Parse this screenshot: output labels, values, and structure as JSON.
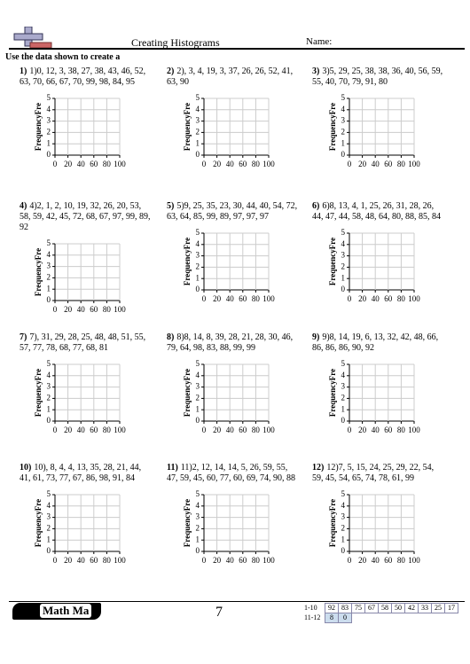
{
  "header": {
    "title": "Creating Histograms",
    "name_label": "Name:",
    "instruction": "Use the data shown to create a"
  },
  "chart_axes": {
    "y_label": "FrequencyFre",
    "yticks": [
      0,
      1,
      2,
      3,
      4,
      5
    ],
    "xticks": [
      0,
      20,
      40,
      60,
      80,
      100
    ]
  },
  "problems": [
    {
      "label": "1)",
      "data": "1)0, 12, 3, 38, 27, 38, 43, 46, 52, 63, 70, 66, 67, 70, 99, 98, 84, 95"
    },
    {
      "label": "2)",
      "data": "2), 3, 4, 19, 3, 37, 26, 26, 52, 41, 63, 90"
    },
    {
      "label": "3)",
      "data": "3)5, 29, 25, 38, 38, 36, 40, 56, 59, 55, 40, 70, 79, 91, 80"
    },
    {
      "label": "4)",
      "data": "4)2, 1, 2, 10, 19, 32, 26, 20, 53, 58, 59, 42, 45, 72, 68, 67, 97, 99, 89, 92"
    },
    {
      "label": "5)",
      "data": "5)9, 25, 35, 23, 30, 44, 40, 54, 72, 63, 64, 85, 99, 89, 97, 97, 97"
    },
    {
      "label": "6)",
      "data": "6)8, 13, 4, 1, 25, 26, 31, 28, 26, 44, 47, 44, 58, 48, 64, 80, 88, 85, 84"
    },
    {
      "label": "7)",
      "data": "7), 31, 29, 28, 25, 48, 48, 51, 55, 57, 77, 78, 68, 77, 68, 81"
    },
    {
      "label": "8)",
      "data": "8)8, 14, 8, 39, 28, 21, 28, 30, 46, 79, 64, 98, 83, 88, 99, 99"
    },
    {
      "label": "9)",
      "data": "9)8, 14, 19, 6, 13, 32, 42, 48, 66, 86, 86, 86, 90, 92"
    },
    {
      "label": "10)",
      "data": "10), 8, 4, 4, 13, 35, 28, 21, 44, 41, 61, 73, 77, 67, 86, 98, 91, 84"
    },
    {
      "label": "11)",
      "data": "11)2, 12, 14, 14, 5, 26, 59, 55, 47, 59, 45, 60, 77, 60, 69, 74, 90, 88"
    },
    {
      "label": "12)",
      "data": "12)7, 5, 15, 24, 25, 29, 22, 54, 59, 45, 54, 65, 74, 78, 61, 99"
    }
  ],
  "footer": {
    "logo": "Math Ma",
    "page": "7",
    "key_rows": [
      {
        "label": "1-10",
        "answers": [
          "92",
          "83",
          "75",
          "67",
          "58",
          "50",
          "42",
          "33",
          "25",
          "17"
        ]
      },
      {
        "label": "11-12",
        "answers": [
          "8",
          "0"
        ]
      }
    ]
  }
}
